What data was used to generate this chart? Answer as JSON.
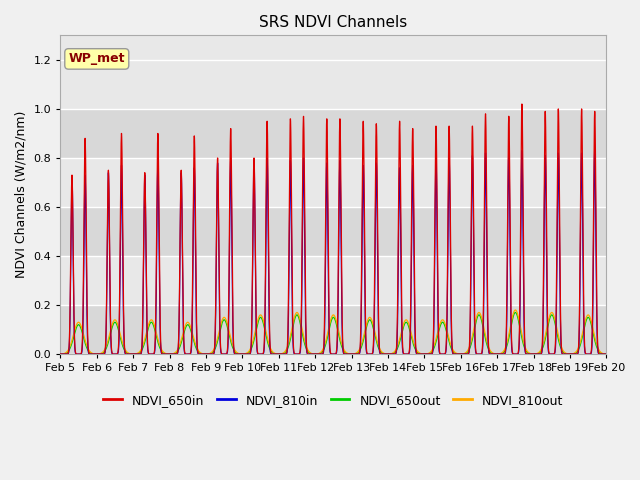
{
  "title": "SRS NDVI Channels",
  "ylabel": "NDVI Channels (W/m2/nm)",
  "xlabel": "",
  "ylim": [
    0.0,
    1.3
  ],
  "yticks": [
    0.0,
    0.2,
    0.4,
    0.6,
    0.8,
    1.0,
    1.2
  ],
  "background_color": "#f0f0f0",
  "plot_bg_color": "#e8e8e8",
  "legend_label": "WP_met",
  "series": [
    {
      "name": "NDVI_650in",
      "color": "#dd0000"
    },
    {
      "name": "NDVI_810in",
      "color": "#0000dd"
    },
    {
      "name": "NDVI_650out",
      "color": "#00cc00"
    },
    {
      "name": "NDVI_810out",
      "color": "#ffaa00"
    }
  ],
  "num_days": 15,
  "peak_650in_morning": [
    0.73,
    0.75,
    0.74,
    0.75,
    0.8,
    0.8,
    0.96,
    0.96,
    0.95,
    0.95,
    0.93,
    0.93,
    0.97,
    0.99,
    1.0
  ],
  "peak_650in_afternoon": [
    0.88,
    0.9,
    0.9,
    0.89,
    0.92,
    0.95,
    0.97,
    0.96,
    0.94,
    0.92,
    0.93,
    0.98,
    1.02,
    1.0,
    0.99
  ],
  "peak_810in_morning": [
    0.72,
    0.74,
    0.73,
    0.74,
    0.78,
    0.79,
    0.79,
    0.78,
    0.77,
    0.76,
    0.79,
    0.81,
    0.82,
    0.81,
    0.82
  ],
  "peak_810in_afternoon": [
    0.73,
    0.77,
    0.77,
    0.76,
    0.79,
    0.8,
    0.8,
    0.79,
    0.78,
    0.77,
    0.8,
    0.82,
    0.83,
    0.82,
    0.83
  ],
  "peak_650out": [
    0.12,
    0.13,
    0.13,
    0.12,
    0.14,
    0.15,
    0.16,
    0.15,
    0.14,
    0.13,
    0.13,
    0.16,
    0.17,
    0.16,
    0.15
  ],
  "peak_810out": [
    0.13,
    0.14,
    0.14,
    0.13,
    0.15,
    0.16,
    0.17,
    0.16,
    0.15,
    0.14,
    0.14,
    0.17,
    0.18,
    0.17,
    0.16
  ],
  "xtick_labels": [
    "Feb 5",
    "Feb 6",
    "Feb 7",
    "Feb 8",
    "Feb 9",
    "Feb 10",
    "Feb 11",
    "Feb 12",
    "Feb 13",
    "Feb 14",
    "Feb 15",
    "Feb 16",
    "Feb 17",
    "Feb 18",
    "Feb 19",
    "Feb 20"
  ],
  "xtick_positions": [
    0,
    1,
    2,
    3,
    4,
    5,
    6,
    7,
    8,
    9,
    10,
    11,
    12,
    13,
    14,
    15
  ]
}
